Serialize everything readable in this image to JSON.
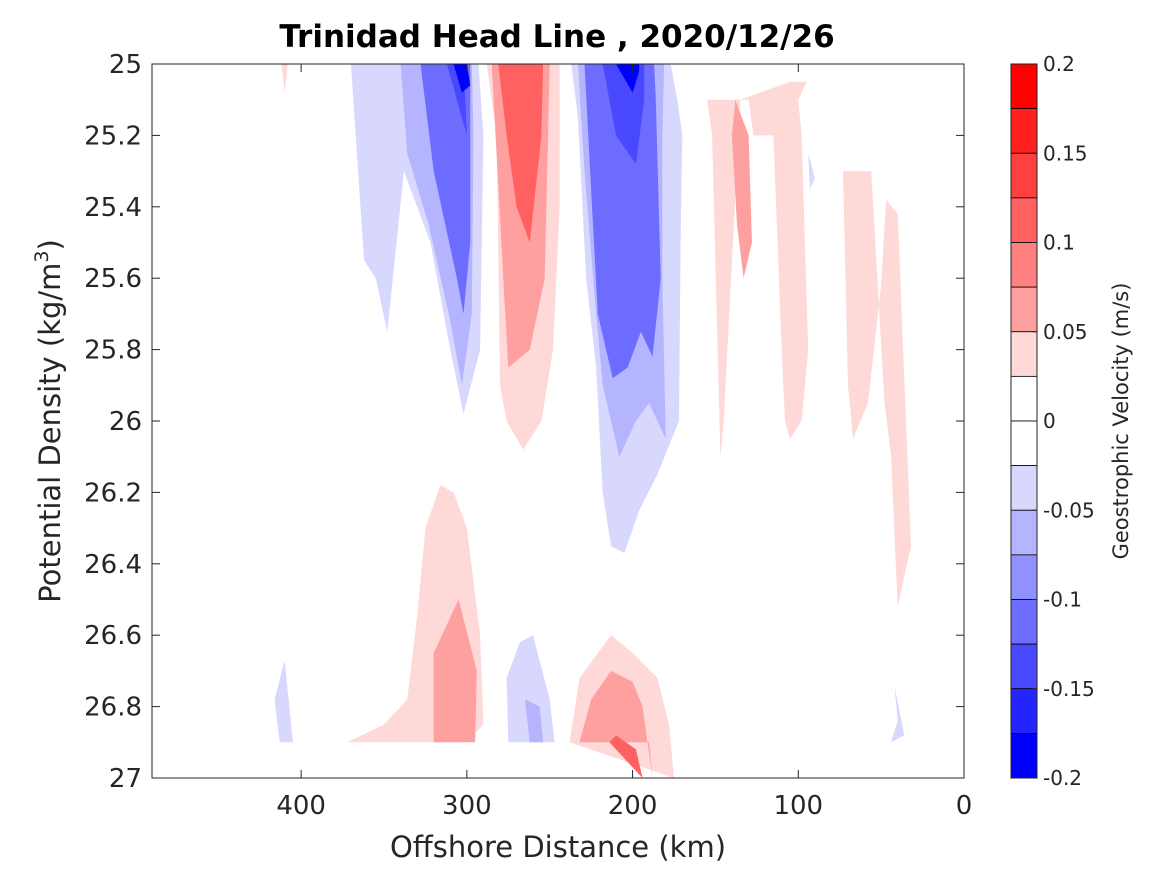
{
  "chart_data": {
    "type": "contour",
    "title": "Trinidad Head Line , 2020/12/26",
    "xlabel": "Offshore Distance (km)",
    "ylabel": "Potential Density (kg/m",
    "ylabel_sup": "3",
    "ylabel_close": ")",
    "xlim": [
      490,
      0
    ],
    "ylim": [
      25,
      27
    ],
    "x_reversed": true,
    "y_reversed": true,
    "xticks": [
      400,
      300,
      200,
      100,
      0
    ],
    "yticks": [
      25,
      25.2,
      25.4,
      25.6,
      25.8,
      26,
      26.2,
      26.4,
      26.6,
      26.8,
      27
    ],
    "ytick_labels": [
      "25",
      "25.2",
      "25.4",
      "25.6",
      "25.8",
      "26",
      "26.2",
      "26.4",
      "26.6",
      "26.8",
      "27"
    ],
    "colorbar": {
      "label": "Geostrophic Velocity (m/s)",
      "range": [
        -0.2,
        0.2
      ],
      "ticks": [
        -0.2,
        -0.15,
        -0.1,
        -0.05,
        0,
        0.05,
        0.1,
        0.15,
        0.2
      ],
      "tick_labels": [
        "-0.2",
        "-0.15",
        "-0.1",
        "-0.05",
        "0",
        "0.05",
        "0.1",
        "0.15",
        "0.2"
      ],
      "levels": [
        {
          "v": 0.1875,
          "color": "#ff0000"
        },
        {
          "v": 0.1625,
          "color": "#ff2020"
        },
        {
          "v": 0.1375,
          "color": "#ff4040"
        },
        {
          "v": 0.1125,
          "color": "#ff6060"
        },
        {
          "v": 0.0875,
          "color": "#ff8080"
        },
        {
          "v": 0.0625,
          "color": "#ffa0a0"
        },
        {
          "v": 0.0375,
          "color": "#ffd8d8"
        },
        {
          "v": 0.0125,
          "color": "#ffffff"
        },
        {
          "v": -0.0125,
          "color": "#ffffff"
        },
        {
          "v": -0.0375,
          "color": "#d8d8ff"
        },
        {
          "v": -0.0625,
          "color": "#b4b4ff"
        },
        {
          "v": -0.0875,
          "color": "#9090ff"
        },
        {
          "v": -0.1125,
          "color": "#6c6cff"
        },
        {
          "v": -0.1375,
          "color": "#4848ff"
        },
        {
          "v": -0.1625,
          "color": "#2424ff"
        },
        {
          "v": -0.1875,
          "color": "#0000ff"
        }
      ]
    },
    "regions": [
      {
        "name": "west-weak-negative",
        "v": -0.04,
        "pts": [
          [
            410,
            26.67
          ],
          [
            405,
            26.9
          ],
          [
            413,
            26.9
          ],
          [
            416,
            26.78
          ]
        ]
      },
      {
        "name": "offshore-negative-core",
        "v": -0.04,
        "pts": [
          [
            370,
            25
          ],
          [
            362,
            25.55
          ],
          [
            355,
            25.6
          ],
          [
            348,
            25.75
          ],
          [
            338,
            25.3
          ],
          [
            322,
            25.5
          ],
          [
            310,
            25.8
          ],
          [
            302,
            25.98
          ],
          [
            292,
            25.8
          ],
          [
            290,
            25.2
          ],
          [
            293,
            25
          ]
        ]
      },
      {
        "name": "offshore-negative-mid",
        "v": -0.07,
        "pts": [
          [
            340,
            25
          ],
          [
            336,
            25.25
          ],
          [
            323,
            25.45
          ],
          [
            310,
            25.72
          ],
          [
            303,
            25.9
          ],
          [
            297,
            25.7
          ],
          [
            296,
            25.2
          ],
          [
            297,
            25
          ]
        ]
      },
      {
        "name": "offshore-negative-strong",
        "v": -0.1,
        "pts": [
          [
            328,
            25
          ],
          [
            320,
            25.3
          ],
          [
            306,
            25.6
          ],
          [
            302,
            25.7
          ],
          [
            298,
            25.5
          ],
          [
            298,
            25
          ],
          [
            318,
            25
          ]
        ]
      },
      {
        "name": "offshore-negative-stronger",
        "v": -0.125,
        "pts": [
          [
            318,
            25
          ],
          [
            313,
            25.3
          ],
          [
            303,
            25.5
          ],
          [
            300,
            25.35
          ],
          [
            302,
            25
          ]
        ]
      },
      {
        "name": "offshore-negative-peak",
        "v": -0.15,
        "pts": [
          [
            312,
            25
          ],
          [
            306,
            25.1
          ],
          [
            300,
            25.2
          ],
          [
            302,
            25
          ]
        ]
      },
      {
        "name": "offshore-negative-max",
        "v": -0.19,
        "pts": [
          [
            308,
            25
          ],
          [
            303,
            25.08
          ],
          [
            298,
            25.06
          ],
          [
            300,
            25
          ]
        ]
      },
      {
        "name": "nearshore-negative-core",
        "v": -0.04,
        "pts": [
          [
            237,
            25
          ],
          [
            233,
            25.15
          ],
          [
            228,
            25.6
          ],
          [
            222,
            25.85
          ],
          [
            218,
            26.2
          ],
          [
            213,
            26.35
          ],
          [
            205,
            26.37
          ],
          [
            196,
            26.25
          ],
          [
            185,
            26.15
          ],
          [
            172,
            26
          ],
          [
            171,
            25.5
          ],
          [
            170,
            25.2
          ],
          [
            173,
            25.1
          ],
          [
            177,
            25
          ]
        ]
      },
      {
        "name": "nearshore-negative-mid",
        "v": -0.07,
        "pts": [
          [
            233,
            25
          ],
          [
            229,
            25.3
          ],
          [
            222,
            25.7
          ],
          [
            218,
            25.9
          ],
          [
            208,
            26.1
          ],
          [
            198,
            26
          ],
          [
            190,
            25.95
          ],
          [
            180,
            26.05
          ],
          [
            182,
            25.6
          ],
          [
            182,
            25.2
          ],
          [
            181,
            25
          ]
        ]
      },
      {
        "name": "nearshore-negative-strong",
        "v": -0.1,
        "pts": [
          [
            229,
            25
          ],
          [
            225,
            25.35
          ],
          [
            221,
            25.7
          ],
          [
            212,
            25.88
          ],
          [
            203,
            25.85
          ],
          [
            195,
            25.75
          ],
          [
            188,
            25.82
          ],
          [
            183,
            25.6
          ],
          [
            186,
            25.1
          ],
          [
            187,
            25
          ]
        ]
      },
      {
        "name": "nearshore-negative-stronger",
        "v": -0.125,
        "pts": [
          [
            224,
            25
          ],
          [
            221,
            25.2
          ],
          [
            210,
            25.45
          ],
          [
            196,
            25.6
          ],
          [
            191,
            25.3
          ],
          [
            191,
            25
          ]
        ]
      },
      {
        "name": "nearshore-negative-peak",
        "v": -0.15,
        "pts": [
          [
            218,
            25
          ],
          [
            210,
            25.2
          ],
          [
            198,
            25.28
          ],
          [
            193,
            25.1
          ],
          [
            193,
            25
          ]
        ]
      },
      {
        "name": "nearshore-negative-max",
        "v": -0.19,
        "pts": [
          [
            210,
            25
          ],
          [
            200,
            25.08
          ],
          [
            196,
            25.02
          ],
          [
            196,
            25
          ]
        ]
      },
      {
        "name": "deep-negative-a",
        "v": -0.04,
        "pts": [
          [
            260,
            26.6
          ],
          [
            250,
            26.78
          ],
          [
            247,
            26.9
          ],
          [
            275,
            26.9
          ],
          [
            276,
            26.72
          ],
          [
            268,
            26.62
          ]
        ]
      },
      {
        "name": "deep-negative-b",
        "v": -0.07,
        "pts": [
          [
            265,
            26.78
          ],
          [
            262,
            26.9
          ],
          [
            254,
            26.9
          ],
          [
            256,
            26.8
          ]
        ]
      },
      {
        "name": "far-east-negative",
        "v": -0.04,
        "pts": [
          [
            42,
            26.74
          ],
          [
            36,
            26.88
          ],
          [
            44,
            26.9
          ],
          [
            40,
            26.84
          ]
        ]
      },
      {
        "name": "shelf-negative-speck",
        "v": -0.04,
        "pts": [
          [
            90,
            25.32
          ],
          [
            94,
            25.25
          ],
          [
            93,
            25.35
          ]
        ]
      },
      {
        "name": "upper-positive-core",
        "v": 0.04,
        "pts": [
          [
            288,
            25
          ],
          [
            282,
            25.2
          ],
          [
            280,
            25.9
          ],
          [
            276,
            26.0
          ],
          [
            266,
            26.08
          ],
          [
            255,
            26.0
          ],
          [
            248,
            25.8
          ],
          [
            244,
            25.4
          ],
          [
            244,
            25
          ],
          [
            260,
            25
          ]
        ]
      },
      {
        "name": "upper-positive-mid",
        "v": 0.06,
        "pts": [
          [
            285,
            25
          ],
          [
            278,
            25.6
          ],
          [
            275,
            25.85
          ],
          [
            262,
            25.8
          ],
          [
            253,
            25.6
          ],
          [
            250,
            25
          ],
          [
            262,
            25
          ]
        ]
      },
      {
        "name": "upper-positive-strong",
        "v": 0.1,
        "pts": [
          [
            281,
            25
          ],
          [
            276,
            25.2
          ],
          [
            270,
            25.4
          ],
          [
            262,
            25.5
          ],
          [
            255,
            25.2
          ],
          [
            254,
            25
          ]
        ]
      },
      {
        "name": "upper-positive-peak",
        "v": 0.125,
        "pts": [
          [
            276,
            25
          ],
          [
            270,
            25.15
          ],
          [
            262,
            25.2
          ],
          [
            258,
            25.1
          ],
          [
            258,
            25
          ]
        ]
      },
      {
        "name": "mid-positive-band",
        "v": 0.04,
        "pts": [
          [
            155,
            25.1
          ],
          [
            130,
            25.1
          ],
          [
            127,
            25.2
          ],
          [
            115,
            25.2
          ],
          [
            110,
            25.8
          ],
          [
            108,
            26
          ],
          [
            105,
            26.05
          ],
          [
            98,
            26.0
          ],
          [
            94,
            25.8
          ],
          [
            98,
            25.2
          ],
          [
            100,
            25.1
          ],
          [
            95,
            25.05
          ],
          [
            105,
            25.05
          ],
          [
            135,
            25.1
          ],
          [
            145,
            26.0
          ],
          [
            147,
            26.1
          ],
          [
            152,
            25.2
          ]
        ]
      },
      {
        "name": "mid-positive-core",
        "v": 0.06,
        "pts": [
          [
            138,
            25.1
          ],
          [
            130,
            25.2
          ],
          [
            128,
            25.5
          ],
          [
            133,
            25.6
          ],
          [
            137,
            25.45
          ],
          [
            140,
            25.2
          ]
        ]
      },
      {
        "name": "coastal-positive-band",
        "v": 0.04,
        "pts": [
          [
            73,
            25.3
          ],
          [
            70,
            25.9
          ],
          [
            67,
            26.05
          ],
          [
            58,
            25.95
          ],
          [
            50,
            25.62
          ],
          [
            47,
            25.38
          ],
          [
            40,
            25.42
          ],
          [
            32,
            26.35
          ],
          [
            40,
            26.52
          ],
          [
            44,
            26.1
          ],
          [
            48,
            25.95
          ],
          [
            56,
            25.3
          ]
        ]
      },
      {
        "name": "shelf-positive-edge",
        "v": 0.04,
        "pts": [
          [
            412,
            25
          ],
          [
            410,
            25.08
          ],
          [
            408,
            25.0
          ]
        ]
      },
      {
        "name": "deep-positive-band",
        "v": 0.04,
        "pts": [
          [
            316,
            26.18
          ],
          [
            325,
            26.3
          ],
          [
            330,
            26.55
          ],
          [
            336,
            26.78
          ],
          [
            350,
            26.85
          ],
          [
            372,
            26.9
          ],
          [
            300,
            26.9
          ],
          [
            290,
            26.85
          ],
          [
            292,
            26.6
          ],
          [
            300,
            26.3
          ],
          [
            308,
            26.2
          ]
        ]
      },
      {
        "name": "deep-positive-core",
        "v": 0.06,
        "pts": [
          [
            305,
            26.5
          ],
          [
            320,
            26.65
          ],
          [
            320,
            26.9
          ],
          [
            295,
            26.9
          ],
          [
            294,
            26.7
          ]
        ]
      },
      {
        "name": "south-positive-band",
        "v": 0.04,
        "pts": [
          [
            213,
            26.6
          ],
          [
            232,
            26.72
          ],
          [
            238,
            26.9
          ],
          [
            175,
            27
          ],
          [
            178,
            26.85
          ],
          [
            185,
            26.72
          ],
          [
            200,
            26.65
          ]
        ]
      },
      {
        "name": "south-positive-core",
        "v": 0.06,
        "pts": [
          [
            213,
            26.7
          ],
          [
            225,
            26.78
          ],
          [
            232,
            26.9
          ],
          [
            190,
            26.9
          ],
          [
            188,
            27
          ],
          [
            194,
            26.8
          ],
          [
            200,
            26.73
          ]
        ]
      },
      {
        "name": "south-positive-peak",
        "v": 0.1,
        "pts": [
          [
            210,
            26.88
          ],
          [
            214,
            26.9
          ],
          [
            194,
            27
          ],
          [
            198,
            26.92
          ]
        ]
      }
    ]
  }
}
